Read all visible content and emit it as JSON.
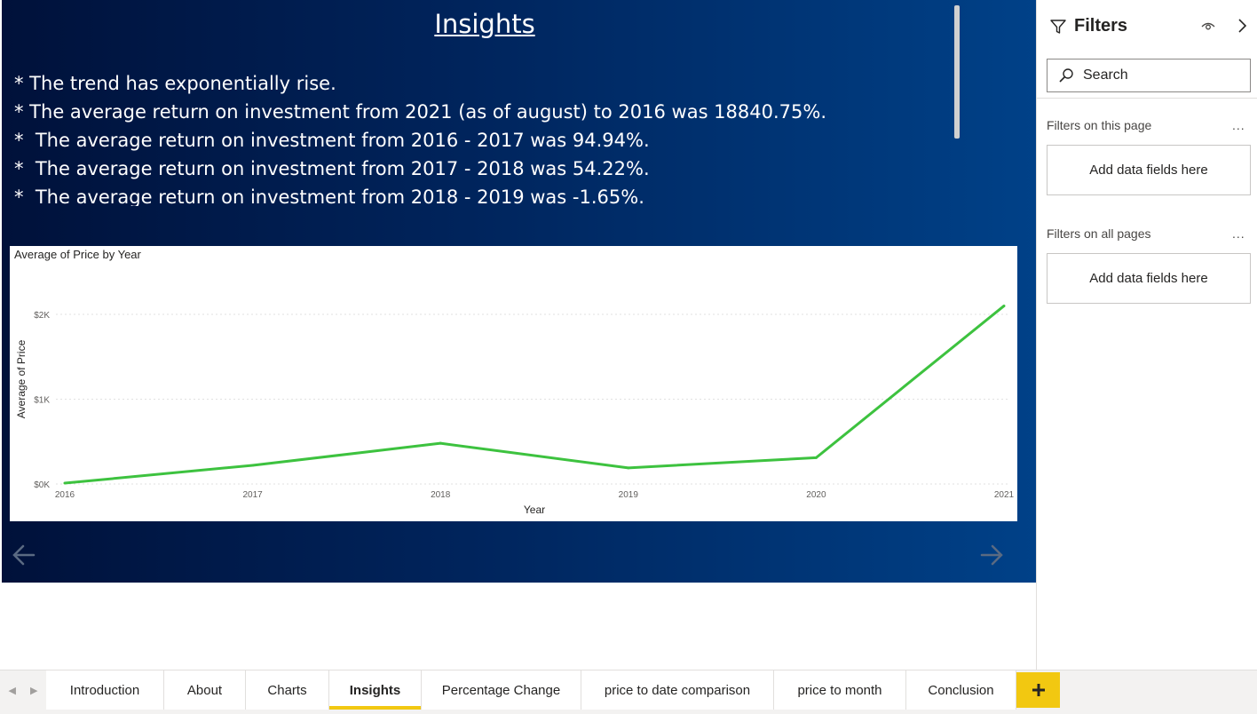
{
  "report": {
    "title": "Insights",
    "insights": [
      "* The trend has exponentially rise.",
      "* The average return on investment from 2021 (as of august) to 2016 was 18840.75%.",
      "*  The average return on investment from 2016 - 2017 was 94.94%.",
      "*  The average return on investment from 2017 - 2018 was 54.22%.",
      "*  The average return on investment from 2018 - 2019 was -1.65%."
    ]
  },
  "chart_data": {
    "type": "line",
    "title": "Average of Price by Year",
    "xlabel": "Year",
    "ylabel": "Average of Price",
    "categories": [
      "2016",
      "2017",
      "2018",
      "2019",
      "2020",
      "2021"
    ],
    "series": [
      {
        "values": [
          10,
          220,
          480,
          190,
          310,
          2100
        ],
        "color": "#3dc23f"
      }
    ],
    "yticks": [
      0,
      1000,
      2000
    ],
    "ytick_labels": [
      "$0K",
      "$1K",
      "$2K"
    ],
    "ylim": [
      0,
      2200
    ],
    "grid": true
  },
  "filters": {
    "heading": "Filters",
    "search_label": "Search",
    "this_page_title": "Filters on this page",
    "this_page_well": "Add data fields here",
    "all_pages_title": "Filters on all pages",
    "all_pages_well": "Add data fields here",
    "more": "..."
  },
  "tabs": [
    {
      "label": "Introduction",
      "active": false
    },
    {
      "label": "About",
      "active": false
    },
    {
      "label": "Charts",
      "active": false
    },
    {
      "label": "Insights",
      "active": true
    },
    {
      "label": "Percentage Change",
      "active": false
    },
    {
      "label": "price to date comparison",
      "active": false
    },
    {
      "label": "price to month",
      "active": false
    },
    {
      "label": "Conclusion",
      "active": false
    }
  ],
  "colors": {
    "accent": "#f2c811",
    "line": "#3dc23f"
  }
}
